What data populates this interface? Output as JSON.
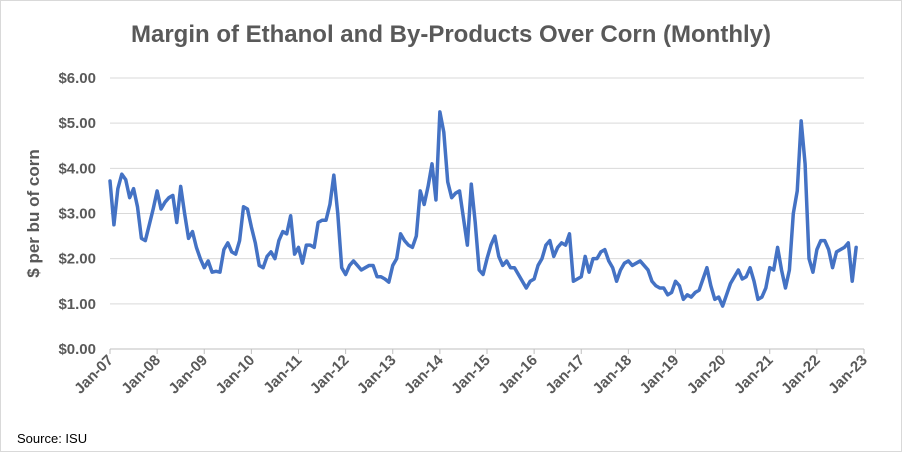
{
  "chart_data": {
    "type": "line",
    "title": "Margin of Ethanol and By-Products Over Corn (Monthly)",
    "xlabel": "",
    "ylabel": "$ per bu of corn",
    "ylim": [
      0,
      6
    ],
    "y_ticks": [
      "$0.00",
      "$1.00",
      "$2.00",
      "$3.00",
      "$4.00",
      "$5.00",
      "$6.00"
    ],
    "x_tick_labels": [
      "Jan-07",
      "Jan-08",
      "Jan-09",
      "Jan-10",
      "Jan-11",
      "Jan-12",
      "Jan-13",
      "Jan-14",
      "Jan-15",
      "Jan-16",
      "Jan-17",
      "Jan-18",
      "Jan-19",
      "Jan-20",
      "Jan-21",
      "Jan-22",
      "Jan-23"
    ],
    "grid": "horizontal",
    "line_color": "#4472c4",
    "series": [
      {
        "x_start": "Jan-07",
        "frequency": "monthly",
        "values": [
          3.72,
          2.75,
          3.55,
          3.87,
          3.75,
          3.35,
          3.55,
          3.15,
          2.45,
          2.4,
          2.75,
          3.1,
          3.5,
          3.1,
          3.25,
          3.35,
          3.4,
          2.8,
          3.6,
          3.0,
          2.45,
          2.6,
          2.25,
          2.0,
          1.8,
          1.95,
          1.7,
          1.72,
          1.7,
          2.2,
          2.35,
          2.15,
          2.1,
          2.4,
          3.15,
          3.1,
          2.7,
          2.35,
          1.85,
          1.8,
          2.05,
          2.15,
          2.0,
          2.4,
          2.6,
          2.55,
          2.95,
          2.1,
          2.25,
          1.9,
          2.3,
          2.3,
          2.25,
          2.8,
          2.85,
          2.85,
          3.2,
          3.85,
          3.0,
          1.8,
          1.65,
          1.85,
          1.95,
          1.85,
          1.75,
          1.8,
          1.85,
          1.85,
          1.6,
          1.6,
          1.55,
          1.48,
          1.85,
          2.0,
          2.55,
          2.4,
          2.3,
          2.25,
          2.5,
          3.5,
          3.2,
          3.6,
          4.1,
          3.3,
          5.25,
          4.8,
          3.7,
          3.35,
          3.45,
          3.5,
          2.9,
          2.3,
          3.65,
          2.8,
          1.75,
          1.65,
          2.0,
          2.3,
          2.5,
          2.05,
          1.85,
          1.95,
          1.8,
          1.8,
          1.65,
          1.5,
          1.35,
          1.5,
          1.55,
          1.85,
          2.0,
          2.3,
          2.4,
          2.05,
          2.25,
          2.35,
          2.3,
          2.55,
          1.5,
          1.55,
          1.6,
          2.05,
          1.7,
          2.0,
          2.0,
          2.15,
          2.2,
          1.95,
          1.8,
          1.5,
          1.75,
          1.9,
          1.95,
          1.85,
          1.9,
          1.95,
          1.85,
          1.75,
          1.5,
          1.4,
          1.35,
          1.35,
          1.2,
          1.25,
          1.5,
          1.4,
          1.1,
          1.2,
          1.15,
          1.25,
          1.3,
          1.55,
          1.8,
          1.4,
          1.1,
          1.15,
          0.95,
          1.2,
          1.45,
          1.6,
          1.75,
          1.55,
          1.6,
          1.8,
          1.5,
          1.1,
          1.15,
          1.35,
          1.8,
          1.75,
          2.25,
          1.75,
          1.35,
          1.75,
          3.0,
          3.5,
          5.05,
          4.1,
          2.0,
          1.7,
          2.2,
          2.4,
          2.4,
          2.2,
          1.8,
          2.15,
          2.2,
          2.25,
          2.35,
          1.5,
          2.25
        ]
      }
    ]
  },
  "footer": {
    "source": "Source: ISU"
  }
}
